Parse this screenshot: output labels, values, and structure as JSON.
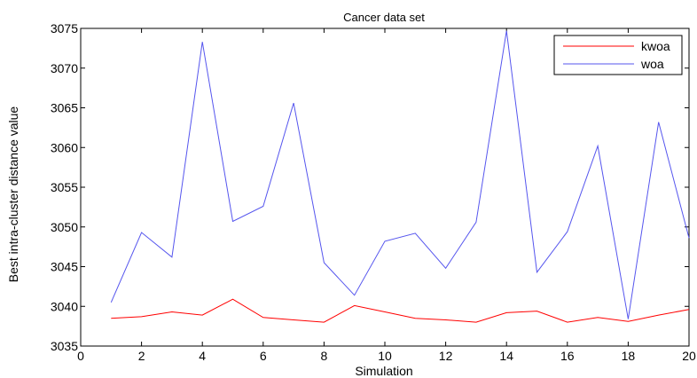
{
  "chart_data": {
    "type": "line",
    "title": "Cancer data set",
    "xlabel": "Simulation",
    "ylabel": "Best intra-cluster distance value",
    "xlim": [
      0,
      20
    ],
    "ylim": [
      3035,
      3075
    ],
    "xticks": [
      0,
      2,
      4,
      6,
      8,
      10,
      12,
      14,
      16,
      18,
      20
    ],
    "yticks": [
      3035,
      3040,
      3045,
      3050,
      3055,
      3060,
      3065,
      3070,
      3075
    ],
    "grid": false,
    "legend_position": "top-right",
    "x": [
      1,
      2,
      3,
      4,
      5,
      6,
      7,
      8,
      9,
      10,
      11,
      12,
      13,
      14,
      15,
      16,
      17,
      18,
      19,
      20
    ],
    "series": [
      {
        "name": "kwoa",
        "color": "#ff0000",
        "values": [
          3038.5,
          3038.7,
          3039.3,
          3038.9,
          3040.9,
          3038.6,
          3038.3,
          3038.0,
          3040.1,
          3039.3,
          3038.5,
          3038.3,
          3038.0,
          3039.2,
          3039.4,
          3038.0,
          3038.6,
          3038.1,
          3038.9,
          3039.6
        ]
      },
      {
        "name": "woa",
        "color": "#5555ee",
        "values": [
          3040.5,
          3049.3,
          3046.2,
          3073.3,
          3050.7,
          3052.6,
          3065.6,
          3045.5,
          3041.4,
          3048.2,
          3049.2,
          3044.8,
          3050.6,
          3074.7,
          3044.3,
          3049.4,
          3060.2,
          3038.4,
          3063.2,
          3048.6
        ]
      }
    ]
  }
}
